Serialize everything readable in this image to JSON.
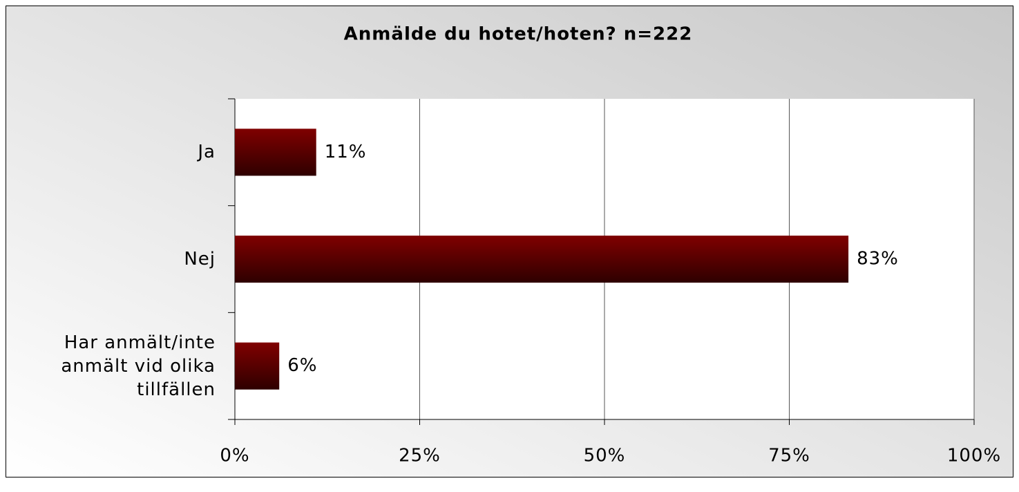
{
  "chart_data": {
    "type": "bar",
    "orientation": "horizontal",
    "title": "Anmälde du hotet/hoten? n=222",
    "categories": [
      "Ja",
      "Nej",
      "Har anmält/inte anmält vid olika tillfällen"
    ],
    "values": [
      11,
      83,
      6
    ],
    "value_labels": [
      "11%",
      "83%",
      "6%"
    ],
    "color": "#800000",
    "xlim": [
      0,
      100
    ],
    "xticks": [
      {
        "value": 0,
        "label": "0%"
      },
      {
        "value": 25,
        "label": "25%"
      },
      {
        "value": 50,
        "label": "50%"
      },
      {
        "value": 75,
        "label": "75%"
      },
      {
        "value": 100,
        "label": "100%"
      }
    ],
    "grid": true
  }
}
